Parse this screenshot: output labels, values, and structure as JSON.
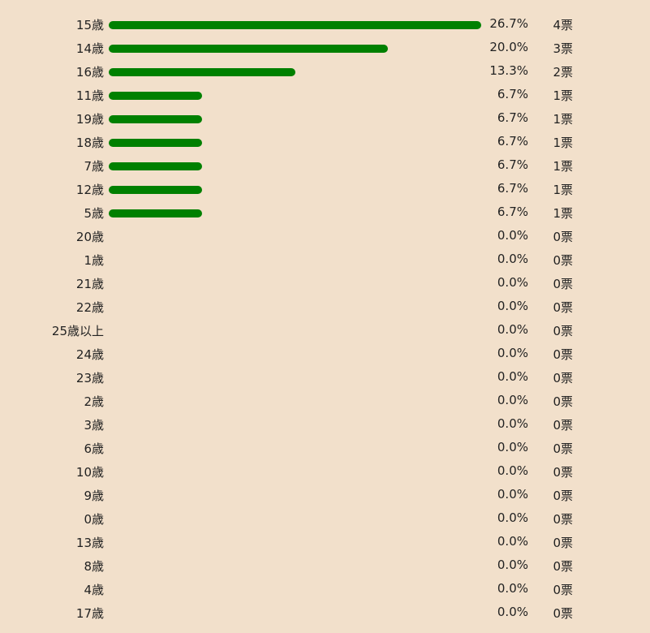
{
  "chart_data": {
    "type": "bar",
    "orientation": "horizontal",
    "bar_color": "#008000",
    "background": "#f2e0cb",
    "vote_suffix": "票",
    "categories": [
      "15歳",
      "14歳",
      "16歳",
      "11歳",
      "19歳",
      "18歳",
      "7歳",
      "12歳",
      "5歳",
      "20歳",
      "1歳",
      "21歳",
      "22歳",
      "25歳以上",
      "24歳",
      "23歳",
      "2歳",
      "3歳",
      "6歳",
      "10歳",
      "9歳",
      "0歳",
      "13歳",
      "8歳",
      "4歳",
      "17歳"
    ],
    "percentages": [
      "26.7%",
      "20.0%",
      "13.3%",
      "6.7%",
      "6.7%",
      "6.7%",
      "6.7%",
      "6.7%",
      "6.7%",
      "0.0%",
      "0.0%",
      "0.0%",
      "0.0%",
      "0.0%",
      "0.0%",
      "0.0%",
      "0.0%",
      "0.0%",
      "0.0%",
      "0.0%",
      "0.0%",
      "0.0%",
      "0.0%",
      "0.0%",
      "0.0%",
      "0.0%"
    ],
    "votes": [
      4,
      3,
      2,
      1,
      1,
      1,
      1,
      1,
      1,
      0,
      0,
      0,
      0,
      0,
      0,
      0,
      0,
      0,
      0,
      0,
      0,
      0,
      0,
      0,
      0,
      0
    ]
  }
}
